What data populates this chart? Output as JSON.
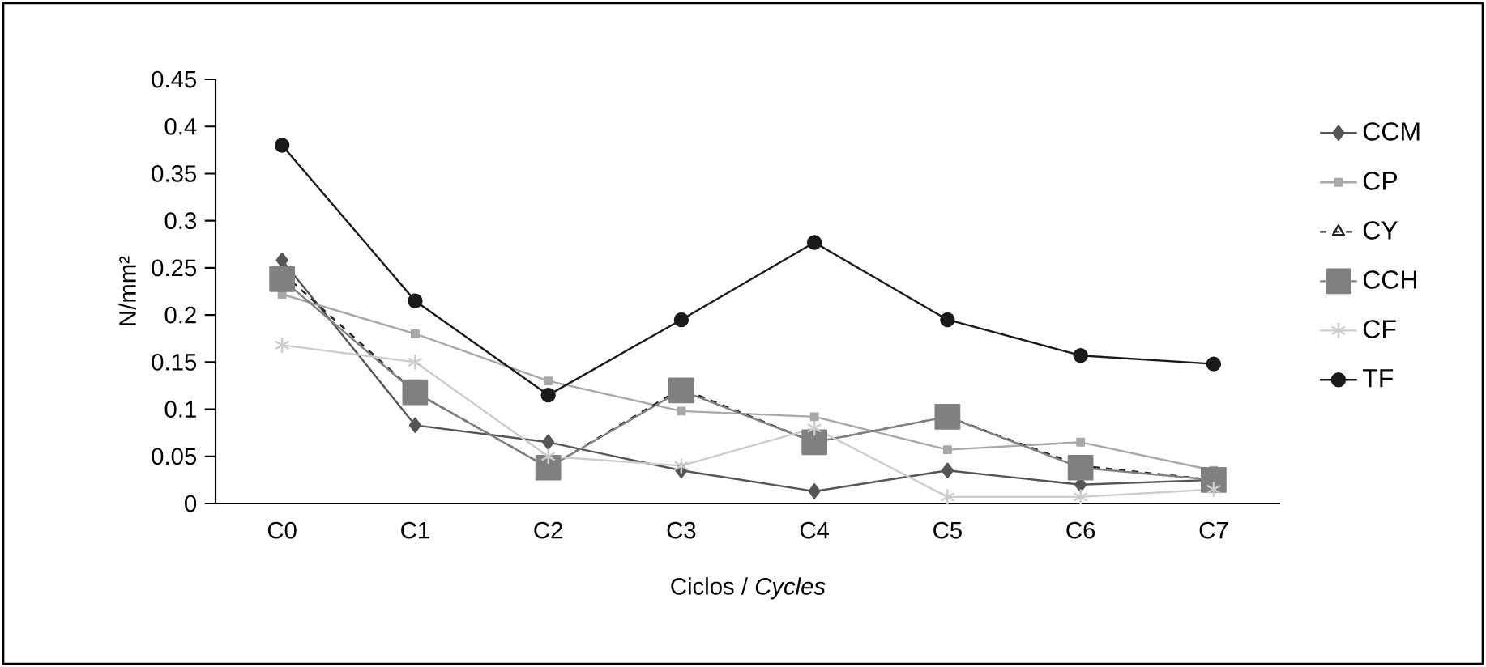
{
  "chart_data": {
    "type": "line",
    "xlabel": "Ciclos / *Cycles*",
    "ylabel": "N/mm²",
    "categories": [
      "C0",
      "C1",
      "C2",
      "C3",
      "C4",
      "C5",
      "C6",
      "C7"
    ],
    "ylim": [
      0,
      0.45
    ],
    "yticks": [
      0,
      0.05,
      0.1,
      0.15,
      0.2,
      0.25,
      0.3,
      0.35,
      0.4,
      0.45
    ],
    "grid": false,
    "legend": "right",
    "series": [
      {
        "name": "CCM",
        "color": "#555555",
        "marker": "diamond",
        "line_style": "solid",
        "values": [
          0.258,
          0.083,
          0.065,
          0.035,
          0.013,
          0.035,
          0.02,
          0.025
        ]
      },
      {
        "name": "CP",
        "color": "#a8a8a8",
        "marker": "square",
        "line_style": "solid",
        "values": [
          0.222,
          0.18,
          0.13,
          0.098,
          0.092,
          0.057,
          0.065,
          0.035
        ]
      },
      {
        "name": "CY",
        "color": "#222222",
        "marker": "triangle",
        "line_style": "dashed",
        "values": [
          0.245,
          0.118,
          0.038,
          0.122,
          0.065,
          0.092,
          0.04,
          0.025
        ]
      },
      {
        "name": "CCH",
        "color": "#808080",
        "marker": "square",
        "line_style": "solid",
        "values": [
          0.238,
          0.118,
          0.038,
          0.12,
          0.065,
          0.092,
          0.038,
          0.025
        ]
      },
      {
        "name": "CF",
        "color": "#cccccc",
        "marker": "cross",
        "line_style": "solid",
        "values": [
          0.168,
          0.15,
          0.05,
          0.04,
          0.08,
          0.007,
          0.007,
          0.015
        ]
      },
      {
        "name": "TF",
        "color": "#1a1a1a",
        "marker": "circle",
        "line_style": "solid",
        "values": [
          0.38,
          0.215,
          0.115,
          0.195,
          0.277,
          0.195,
          0.157,
          0.148
        ]
      }
    ]
  }
}
